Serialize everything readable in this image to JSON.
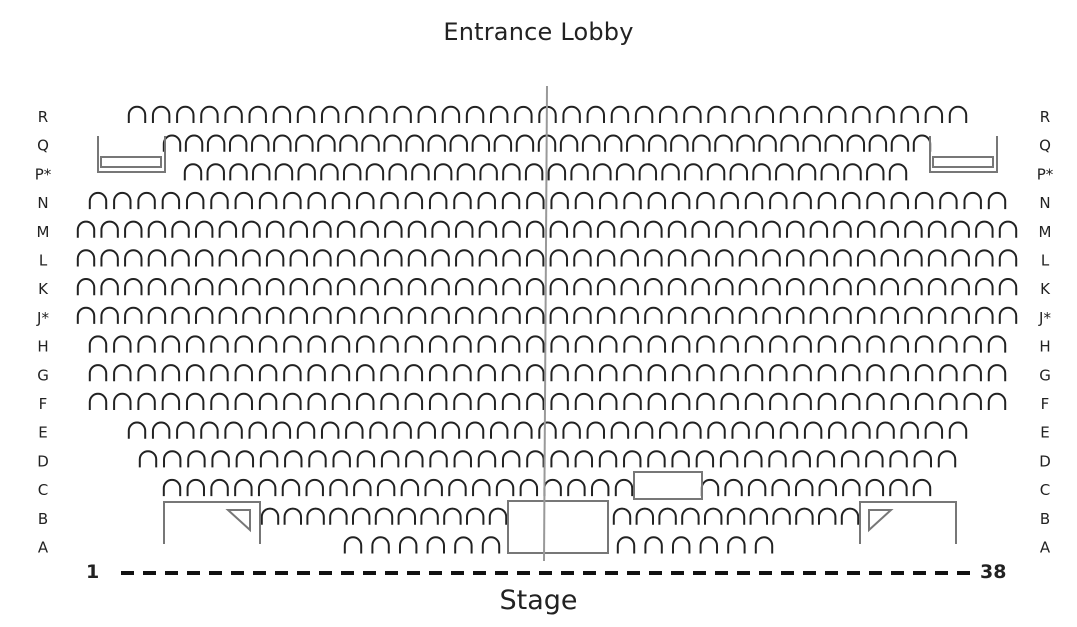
{
  "header": {
    "entrance_label": "Entrance Lobby"
  },
  "footer": {
    "stage_label": "Stage",
    "seat_start": "1",
    "seat_end": "38"
  },
  "rows": [
    {
      "label": "R",
      "segments": [
        [
          1,
          35
        ]
      ]
    },
    {
      "label": "Q",
      "segments": [
        [
          1,
          35
        ]
      ]
    },
    {
      "label": "P*",
      "segments": [
        [
          1,
          32
        ]
      ]
    },
    {
      "label": "N",
      "segments": [
        [
          1,
          38
        ]
      ]
    },
    {
      "label": "M",
      "segments": [
        [
          1,
          40
        ]
      ]
    },
    {
      "label": "L",
      "segments": [
        [
          1,
          40
        ]
      ]
    },
    {
      "label": "K",
      "segments": [
        [
          1,
          40
        ]
      ]
    },
    {
      "label": "J*",
      "segments": [
        [
          1,
          40
        ]
      ]
    },
    {
      "label": "H",
      "segments": [
        [
          1,
          38
        ]
      ]
    },
    {
      "label": "G",
      "segments": [
        [
          1,
          38
        ]
      ]
    },
    {
      "label": "F",
      "segments": [
        [
          1,
          38
        ]
      ]
    },
    {
      "label": "E",
      "segments": [
        [
          1,
          35
        ]
      ]
    },
    {
      "label": "D",
      "segments": [
        [
          1,
          34
        ]
      ]
    },
    {
      "label": "C",
      "segments": [
        [
          1,
          20
        ],
        [
          21,
          30
        ]
      ]
    },
    {
      "label": "B",
      "segments": [
        [
          1,
          11
        ],
        [
          12,
          22
        ]
      ]
    },
    {
      "label": "A",
      "segments": [
        [
          1,
          6
        ],
        [
          7,
          12
        ]
      ]
    }
  ],
  "colors": {
    "seat_outline": "#222222",
    "structure_outline": "#777777",
    "aisle_line": "#999999"
  }
}
